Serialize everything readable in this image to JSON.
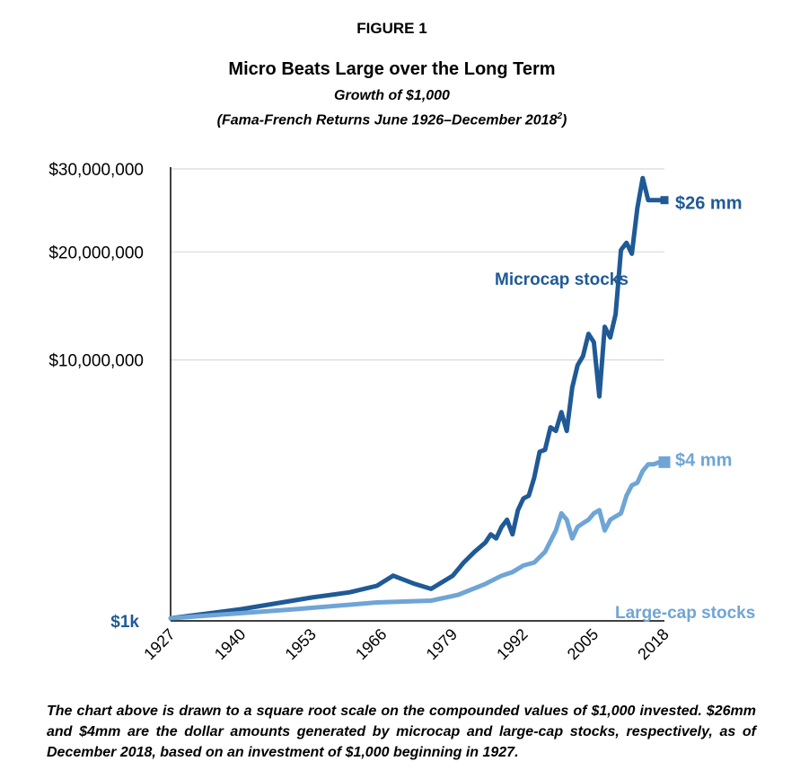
{
  "header": {
    "figure_label": "FIGURE 1",
    "title": "Micro Beats Large over the Long Term",
    "subtitle": "Growth of $1,000",
    "subtitle2": "(Fama-French Returns June 1926–December 2018",
    "subtitle2_sup": "2",
    "subtitle2_end": ")"
  },
  "caption": "The chart above is drawn to a square root scale on the compounded values of $1,000 invested. $26mm and $4mm are the dollar amounts generated by microcap and large-cap stocks, respectively, as of December 2018, based on an investment of $1,000 beginning in 1927.",
  "colors": {
    "micro": "#1f5a96",
    "large": "#6fa5d6",
    "axis": "#000000",
    "grid": "#d9d9d9"
  },
  "chart_data": {
    "type": "line",
    "scale": "square-root",
    "y_tick_labels": [
      "$1k",
      "$10,000,000",
      "$20,000,000",
      "$30,000,000"
    ],
    "y_ticks": [
      0,
      10000000,
      20000000,
      30000000
    ],
    "ylim": [
      0,
      30000000
    ],
    "x_tick_labels": [
      "1927",
      "1940",
      "1953",
      "1966",
      "1979",
      "1992",
      "2005",
      "2018"
    ],
    "xlim": [
      1927,
      2018
    ],
    "series": [
      {
        "name": "Microcap stocks",
        "color": "#1f5a96",
        "end_label": "$26 mm",
        "x": [
          1927,
          1940,
          1953,
          1960,
          1965,
          1968,
          1972,
          1975,
          1979,
          1981,
          1983,
          1985,
          1986,
          1987,
          1988,
          1989,
          1990,
          1991,
          1992,
          1993,
          1994,
          1995,
          1996,
          1997,
          1998,
          1999,
          2000,
          2001,
          2002,
          2003,
          2004,
          2005,
          2006,
          2007,
          2008,
          2009,
          2010,
          2011,
          2012,
          2013,
          2014,
          2015,
          2016,
          2017,
          2018
        ],
        "values": [
          1000,
          20000,
          80000,
          120000,
          180000,
          300000,
          200000,
          150000,
          300000,
          500000,
          700000,
          900000,
          1100000,
          1000000,
          1300000,
          1500000,
          1100000,
          1800000,
          2200000,
          2300000,
          3000000,
          4200000,
          4300000,
          5500000,
          5300000,
          6400000,
          5300000,
          8000000,
          9600000,
          10300000,
          12100000,
          11400000,
          7400000,
          12700000,
          11800000,
          13800000,
          20200000,
          21000000,
          19800000,
          25000000,
          28800000,
          26000000,
          26000000,
          26000000,
          26000000
        ]
      },
      {
        "name": "Large-cap stocks",
        "color": "#6fa5d6",
        "end_label": "$4 mm",
        "x": [
          1927,
          1950,
          1965,
          1975,
          1980,
          1985,
          1988,
          1990,
          1992,
          1994,
          1996,
          1998,
          1999,
          2000,
          2001,
          2002,
          2003,
          2004,
          2005,
          2006,
          2007,
          2008,
          2009,
          2010,
          2011,
          2012,
          2013,
          2014,
          2015,
          2016,
          2017,
          2018
        ],
        "values": [
          1000,
          20000,
          50000,
          60000,
          100000,
          200000,
          300000,
          350000,
          450000,
          500000,
          700000,
          1200000,
          1700000,
          1500000,
          1000000,
          1300000,
          1400000,
          1500000,
          1700000,
          1800000,
          1200000,
          1500000,
          1600000,
          1700000,
          2300000,
          2700000,
          2800000,
          3300000,
          3600000,
          3600000,
          3700000,
          3700000
        ]
      }
    ],
    "end_markers": [
      {
        "series": "Microcap stocks",
        "year": 2018,
        "value": 26000000
      },
      {
        "series": "Large-cap stocks",
        "year": 2018,
        "value": 3700000
      }
    ]
  }
}
